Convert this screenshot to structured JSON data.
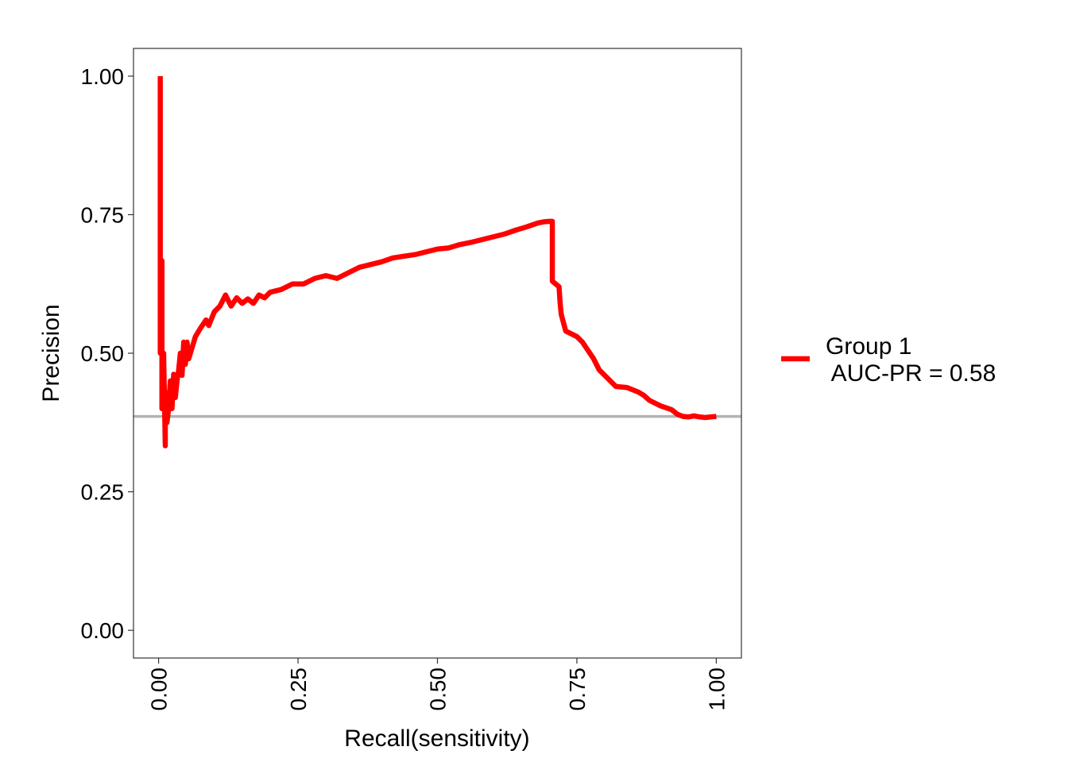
{
  "chart_data": {
    "type": "line",
    "title": "",
    "xlabel": "Recall(sensitivity)",
    "ylabel": "Precision",
    "xlim": [
      -0.045,
      1.045
    ],
    "ylim": [
      -0.05,
      1.05
    ],
    "x_ticks": [
      "0.00",
      "0.25",
      "0.50",
      "0.75",
      "1.00"
    ],
    "y_ticks": [
      "0.00",
      "0.25",
      "0.50",
      "0.75",
      "1.00"
    ],
    "x_tick_values": [
      0,
      0.25,
      0.5,
      0.75,
      1.0
    ],
    "y_tick_values": [
      0,
      0.25,
      0.5,
      0.75,
      1.0
    ],
    "x_tick_rotation": "vertical",
    "grid": false,
    "legend_position": "right",
    "baseline": {
      "y": 0.386,
      "color": "#b3b3b3"
    },
    "series": [
      {
        "name": "Group 1\n AUC-PR = 0.58",
        "color": "#ff0000",
        "points": [
          [
            0.003,
            1.0
          ],
          [
            0.003,
            0.5
          ],
          [
            0.006,
            0.667
          ],
          [
            0.006,
            0.4
          ],
          [
            0.009,
            0.5
          ],
          [
            0.012,
            0.333
          ],
          [
            0.012,
            0.43
          ],
          [
            0.015,
            0.375
          ],
          [
            0.018,
            0.4
          ],
          [
            0.021,
            0.45
          ],
          [
            0.024,
            0.4
          ],
          [
            0.027,
            0.462
          ],
          [
            0.03,
            0.42
          ],
          [
            0.033,
            0.45
          ],
          [
            0.036,
            0.47
          ],
          [
            0.039,
            0.5
          ],
          [
            0.042,
            0.46
          ],
          [
            0.045,
            0.52
          ],
          [
            0.048,
            0.48
          ],
          [
            0.051,
            0.52
          ],
          [
            0.054,
            0.49
          ],
          [
            0.06,
            0.51
          ],
          [
            0.066,
            0.53
          ],
          [
            0.075,
            0.545
          ],
          [
            0.085,
            0.56
          ],
          [
            0.09,
            0.55
          ],
          [
            0.1,
            0.575
          ],
          [
            0.11,
            0.585
          ],
          [
            0.12,
            0.605
          ],
          [
            0.13,
            0.585
          ],
          [
            0.14,
            0.6
          ],
          [
            0.15,
            0.59
          ],
          [
            0.16,
            0.598
          ],
          [
            0.17,
            0.59
          ],
          [
            0.18,
            0.605
          ],
          [
            0.19,
            0.6
          ],
          [
            0.2,
            0.61
          ],
          [
            0.22,
            0.615
          ],
          [
            0.24,
            0.625
          ],
          [
            0.26,
            0.625
          ],
          [
            0.28,
            0.635
          ],
          [
            0.3,
            0.64
          ],
          [
            0.32,
            0.635
          ],
          [
            0.34,
            0.645
          ],
          [
            0.36,
            0.655
          ],
          [
            0.38,
            0.66
          ],
          [
            0.4,
            0.665
          ],
          [
            0.42,
            0.672
          ],
          [
            0.44,
            0.675
          ],
          [
            0.46,
            0.678
          ],
          [
            0.48,
            0.683
          ],
          [
            0.5,
            0.688
          ],
          [
            0.52,
            0.69
          ],
          [
            0.54,
            0.696
          ],
          [
            0.56,
            0.7
          ],
          [
            0.58,
            0.705
          ],
          [
            0.6,
            0.71
          ],
          [
            0.62,
            0.715
          ],
          [
            0.64,
            0.722
          ],
          [
            0.66,
            0.728
          ],
          [
            0.68,
            0.735
          ],
          [
            0.69,
            0.737
          ],
          [
            0.7,
            0.738
          ],
          [
            0.706,
            0.738
          ],
          [
            0.706,
            0.63
          ],
          [
            0.712,
            0.625
          ],
          [
            0.718,
            0.62
          ],
          [
            0.72,
            0.59
          ],
          [
            0.722,
            0.57
          ],
          [
            0.726,
            0.555
          ],
          [
            0.73,
            0.54
          ],
          [
            0.74,
            0.535
          ],
          [
            0.75,
            0.53
          ],
          [
            0.76,
            0.52
          ],
          [
            0.77,
            0.505
          ],
          [
            0.78,
            0.49
          ],
          [
            0.79,
            0.47
          ],
          [
            0.8,
            0.46
          ],
          [
            0.81,
            0.45
          ],
          [
            0.82,
            0.44
          ],
          [
            0.84,
            0.438
          ],
          [
            0.86,
            0.43
          ],
          [
            0.87,
            0.424
          ],
          [
            0.88,
            0.415
          ],
          [
            0.9,
            0.405
          ],
          [
            0.92,
            0.398
          ],
          [
            0.93,
            0.39
          ],
          [
            0.94,
            0.386
          ],
          [
            0.95,
            0.385
          ],
          [
            0.96,
            0.387
          ],
          [
            0.97,
            0.385
          ],
          [
            0.98,
            0.384
          ],
          [
            0.99,
            0.385
          ],
          [
            1.0,
            0.386
          ]
        ]
      }
    ]
  }
}
